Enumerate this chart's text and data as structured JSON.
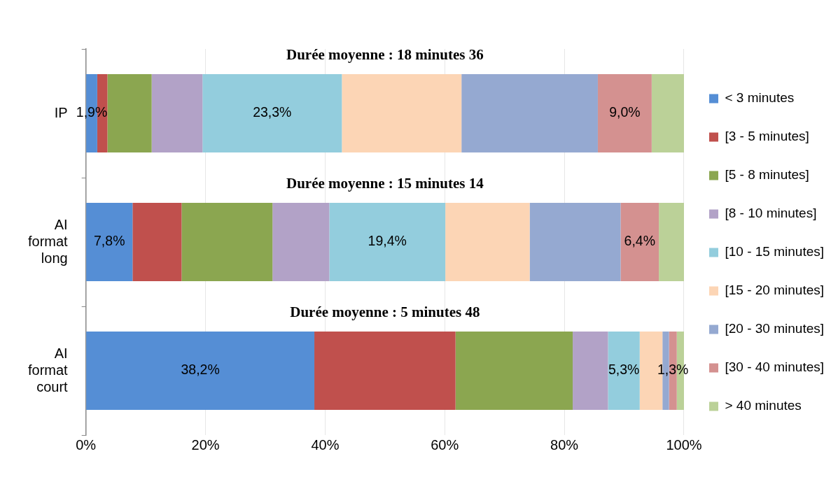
{
  "chart_data": {
    "type": "bar",
    "orientation": "horizontal",
    "stacked": true,
    "categories": [
      "IP",
      "AI format long",
      "AI format court"
    ],
    "series": [
      {
        "name": "< 3 minutes",
        "color": "#558ed5",
        "values": [
          1.9,
          7.8,
          38.2
        ],
        "value_labels": [
          "1,9%",
          "7,8%",
          "38,2%"
        ]
      },
      {
        "name": "[3 - 5 minutes]",
        "color": "#c0504d",
        "values": [
          1.7,
          8.2,
          23.6
        ]
      },
      {
        "name": "[5 - 8 minutes]",
        "color": "#8ba650",
        "values": [
          7.4,
          15.2,
          19.6
        ]
      },
      {
        "name": "[8 - 10 minutes]",
        "color": "#b2a2c7",
        "values": [
          8.5,
          9.5,
          5.9
        ]
      },
      {
        "name": "[10 - 15 minutes]",
        "color": "#93cddd",
        "values": [
          23.3,
          19.4,
          5.3
        ],
        "value_labels": [
          "23,3%",
          "19,4%",
          "5,3%"
        ]
      },
      {
        "name": "[15 - 20 minutes]",
        "color": "#fcd5b5",
        "values": [
          20.0,
          14.1,
          3.8
        ]
      },
      {
        "name": "[20 - 30 minutes]",
        "color": "#95a9d1",
        "values": [
          22.8,
          15.2,
          1.1
        ]
      },
      {
        "name": "[30 - 40 minutes]",
        "color": "#d49190",
        "values": [
          9.0,
          6.4,
          1.3
        ],
        "value_labels": [
          "9,0%",
          "6,4%",
          "1,3%"
        ]
      },
      {
        "name": "> 40 minutes",
        "color": "#bbd198",
        "values": [
          5.4,
          4.2,
          1.2
        ]
      }
    ],
    "xlim": [
      0,
      100
    ],
    "xticks": [
      {
        "value": 0,
        "label": "0%"
      },
      {
        "value": 20,
        "label": "20%"
      },
      {
        "value": 40,
        "label": "40%"
      },
      {
        "value": 60,
        "label": "60%"
      },
      {
        "value": 80,
        "label": "80%"
      },
      {
        "value": 100,
        "label": "100%"
      }
    ],
    "grid": "x",
    "legend": "right",
    "annotations": [
      "Durée moyenne : 18 minutes 36",
      "Durée moyenne : 15 minutes 14",
      "Durée moyenne : 5 minutes 48"
    ]
  }
}
